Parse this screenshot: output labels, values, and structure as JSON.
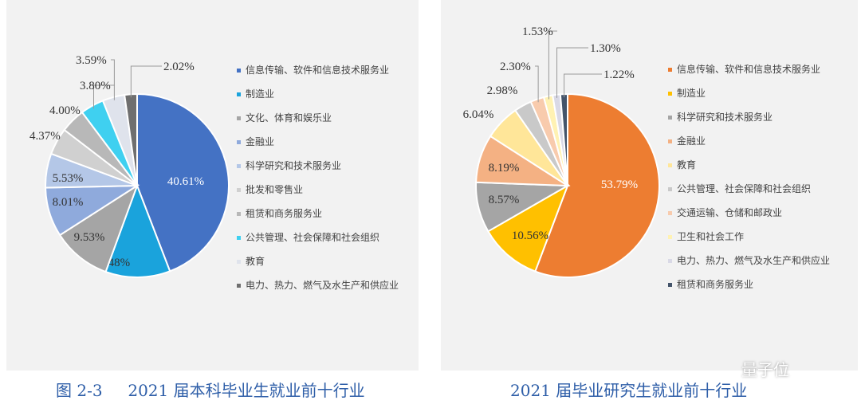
{
  "chart_data": [
    {
      "type": "pie",
      "title": "",
      "caption": "图 2-3     2021 届本科毕业生就业前十行业",
      "categories": [
        "信息传输、软件和信息技术服务业",
        "制造业",
        "文化、体育和娱乐业",
        "金融业",
        "科学研究和技术服务业",
        "批发和零售业",
        "租赁和商务服务业",
        "公共管理、社会保障和社会组织",
        "教育",
        "电力、热力、燃气及水生产和供应业"
      ],
      "values": [
        40.61,
        10.48,
        9.53,
        8.01,
        5.53,
        4.37,
        4.0,
        3.8,
        3.59,
        2.02
      ],
      "labels": [
        "40.61%",
        "10.48%",
        "9.53%",
        "8.01%",
        "5.53%",
        "4.37%",
        "4.00%",
        "3.80%",
        "3.59%",
        "2.02%"
      ],
      "colors": [
        "#4472c4",
        "#1aa3dc",
        "#a5a5a5",
        "#8faadc",
        "#b4c7e7",
        "#d0d0d0",
        "#b8b8b8",
        "#3fd0f0",
        "#dfe3ec",
        "#6f6f6f"
      ],
      "legend": "right"
    },
    {
      "type": "pie",
      "title": "",
      "caption": "2021 届毕业研究生就业前十行业",
      "categories": [
        "信息传输、软件和信息技术服务业",
        "制造业",
        "科学研究和技术服务业",
        "金融业",
        "教育",
        "公共管理、社会保障和社会组织",
        "交通运输、仓储和邮政业",
        "卫生和社会工作",
        "电力、热力、燃气及水生产和供应业",
        "租赁和商务服务业"
      ],
      "values": [
        53.79,
        10.56,
        8.57,
        8.19,
        6.04,
        2.98,
        2.3,
        1.53,
        1.3,
        1.22
      ],
      "labels": [
        "53.79%",
        "10.56%",
        "8.57%",
        "8.19%",
        "6.04%",
        "2.98%",
        "2.30%",
        "1.53%",
        "1.30%",
        "1.22%"
      ],
      "colors": [
        "#ed7d31",
        "#ffc000",
        "#a5a5a5",
        "#f4b183",
        "#ffe699",
        "#c9c9c9",
        "#f8cbad",
        "#fff2b3",
        "#d9d9e6",
        "#44546a"
      ],
      "legend": "right"
    }
  ],
  "watermark": "量子位"
}
